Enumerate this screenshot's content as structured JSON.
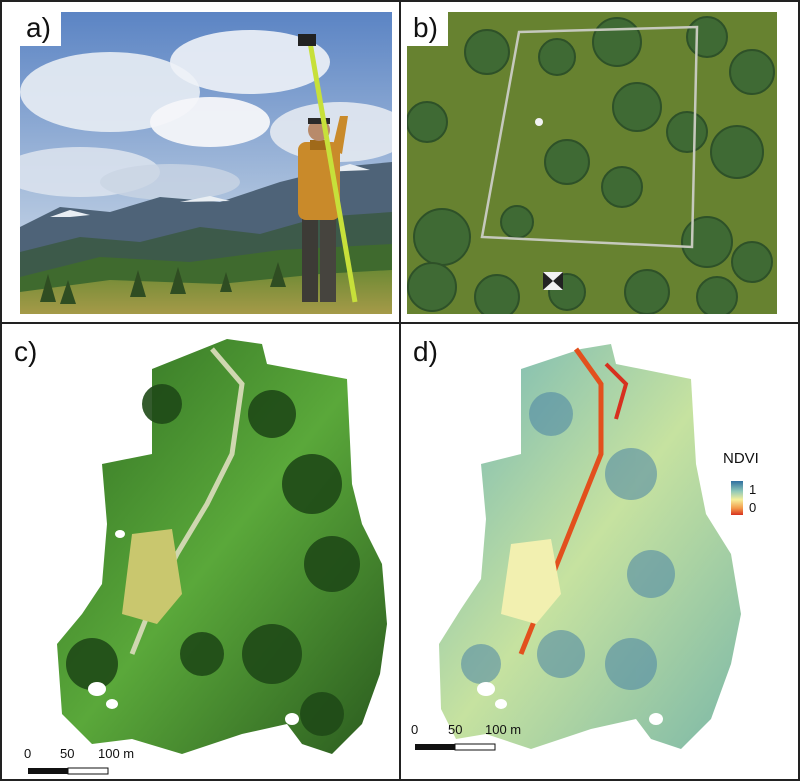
{
  "panels": {
    "a": {
      "label": "a)"
    },
    "b": {
      "label": "b)"
    },
    "c": {
      "label": "c)"
    },
    "d": {
      "label": "d)"
    }
  },
  "scalebar_c": {
    "zero": "0",
    "mid": "50",
    "end": "100 m"
  },
  "scalebar_d": {
    "zero": "0",
    "mid": "50",
    "end": "100 m"
  },
  "legend": {
    "title": "NDVI",
    "high": "1",
    "low": "0",
    "colors": [
      "#2f6fa0",
      "#8fc8b8",
      "#f6ef9a",
      "#f39a4a",
      "#d7301f"
    ]
  }
}
